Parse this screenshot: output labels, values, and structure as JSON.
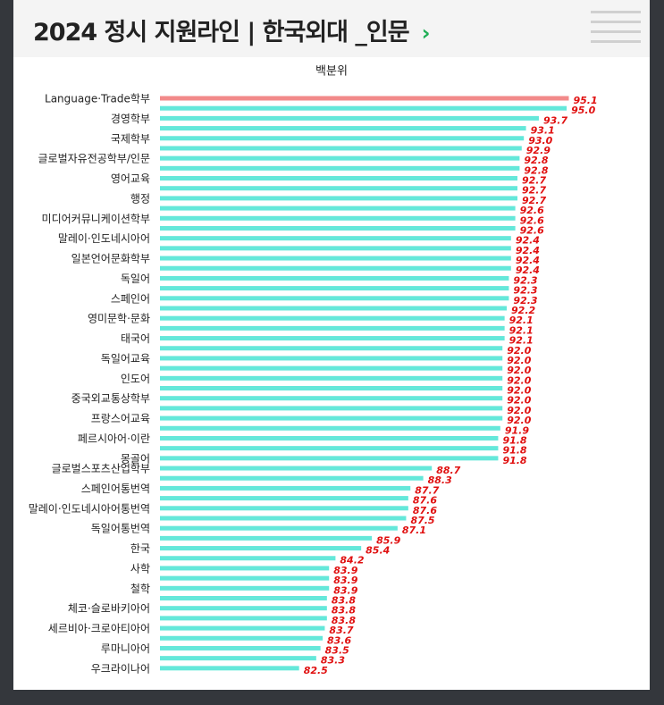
{
  "header": {
    "title": "2024 정시 지원라인 | 한국외대 _인문",
    "chevron": "›"
  },
  "chart_data": {
    "type": "hbar",
    "title": "백분위",
    "categories": [
      "Language·Trade학부",
      null,
      "경영학부",
      null,
      "국제학부",
      null,
      "글로벌자유전공학부/인문",
      null,
      "영어교육",
      null,
      "행정",
      null,
      "미디어커뮤니케이션학부",
      null,
      "말레이·인도네시아어",
      null,
      "일본언어문화학부",
      null,
      "독일어",
      null,
      "스페인어",
      null,
      "영미문학·문화",
      null,
      "태국어",
      null,
      "독일어교육",
      null,
      "인도어",
      null,
      "중국외교통상학부",
      null,
      "프랑스어교육",
      null,
      "페르시아어·이란",
      null,
      "몽골어",
      "글로벌스포츠산업학부",
      null,
      "스페인어통번역",
      null,
      "말레이·인도네시아어통번역",
      null,
      "독일어통번역",
      null,
      "한국",
      null,
      "사학",
      null,
      "철학",
      null,
      "체코·슬로바키아어",
      null,
      "세르비아·크로아티아어",
      null,
      "루마니아어",
      null,
      "우크라이나어"
    ],
    "values": [
      95.1,
      95.0,
      93.7,
      93.1,
      93.0,
      92.9,
      92.8,
      92.8,
      92.7,
      92.7,
      92.7,
      92.6,
      92.6,
      92.6,
      92.4,
      92.4,
      92.4,
      92.4,
      92.3,
      92.3,
      92.3,
      92.2,
      92.1,
      92.1,
      92.1,
      92.0,
      92.0,
      92.0,
      92.0,
      92.0,
      92.0,
      92.0,
      92.0,
      91.9,
      91.8,
      91.8,
      91.8,
      88.7,
      88.3,
      87.7,
      87.6,
      87.6,
      87.5,
      87.1,
      85.9,
      85.4,
      84.2,
      83.9,
      83.9,
      83.9,
      83.8,
      83.8,
      83.8,
      83.7,
      83.6,
      83.5,
      83.3,
      82.5
    ],
    "value_labels": [
      "95.1",
      "95.0",
      "93.7",
      "93.1",
      "93.0",
      "92.9",
      "92.8",
      "92.8",
      "92.7",
      "92.7",
      "92.7",
      "92.6",
      "92.6",
      "92.6",
      "92.4",
      "92.4",
      "92.4",
      "92.4",
      "92.3",
      "92.3",
      "92.3",
      "92.2",
      "92.1",
      "92.1",
      "92.1",
      "92.0",
      "92.0",
      "92.0",
      "92.0",
      "92.0",
      "92.0",
      "92.0",
      "92.0",
      "91.9",
      "91.8",
      "91.8",
      "91.8",
      "88.7",
      "88.3",
      "87.7",
      "87.6",
      "87.6",
      "87.5",
      "87.1",
      "85.9",
      "85.4",
      "84.2",
      "83.9",
      "83.9",
      "83.9",
      "83.8",
      "83.8",
      "83.8",
      "83.7",
      "83.6",
      "83.5",
      "83.3",
      "82.5"
    ],
    "color": "#64e8da",
    "highlight": {
      "index": 0,
      "color": "#f28a8a"
    },
    "label_color": "#e01010",
    "xlim": [
      76,
      97
    ]
  }
}
